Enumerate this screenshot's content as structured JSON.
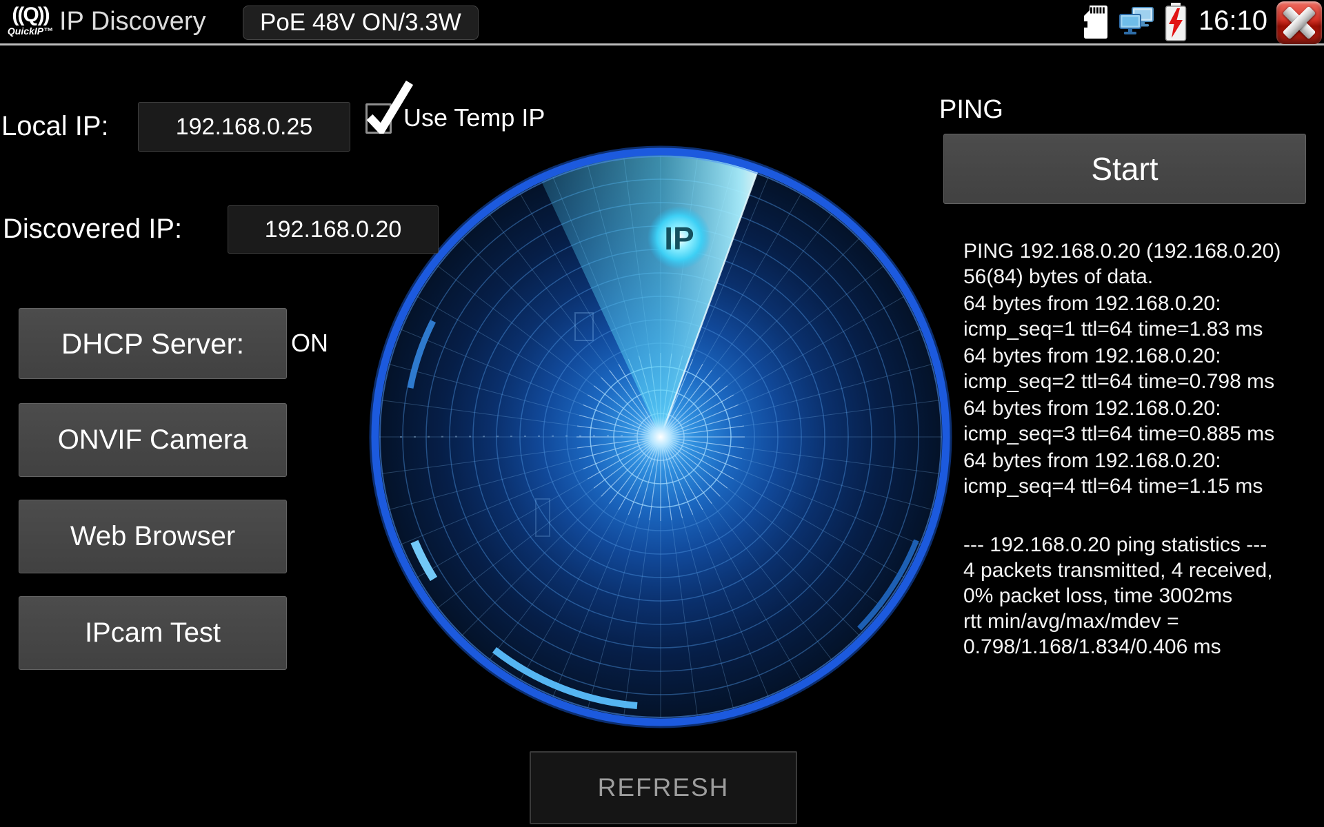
{
  "topbar": {
    "logo": {
      "glyph": "((Q))",
      "brand": "QuickIP™"
    },
    "title": "IP Discovery",
    "poe_badge": "PoE 48V ON/3.3W",
    "time": "16:10"
  },
  "icons": {
    "logo": "quickip-logo-icon",
    "sd_card": "sd-card-icon",
    "network": "network-status-icon",
    "battery": "battery-charging-icon",
    "close": "close-icon",
    "checkbox": "checkbox-checked-icon"
  },
  "left_panel": {
    "local_ip_label": "Local IP:",
    "local_ip_value": "192.168.0.25",
    "use_temp_ip_label": "Use Temp IP",
    "use_temp_ip_checked": true,
    "discovered_ip_label": "Discovered IP:",
    "discovered_ip_value": "192.168.0.20",
    "dhcp_button_label": "DHCP Server:",
    "dhcp_status": "ON",
    "onvif_button_label": "ONVIF Camera",
    "web_browser_button_label": "Web Browser",
    "ipcam_test_button_label": "IPcam Test"
  },
  "radar": {
    "blip_label": "IP"
  },
  "refresh_button_label": "REFRESH",
  "ping_panel": {
    "title": "PING",
    "start_button_label": "Start",
    "groups": [
      [
        "PING 192.168.0.20 (192.168.0.20)",
        "56(84) bytes of data."
      ],
      [
        "64 bytes from 192.168.0.20:",
        "icmp_seq=1 ttl=64 time=1.83 ms"
      ],
      [
        "64 bytes from 192.168.0.20:",
        "icmp_seq=2 ttl=64 time=0.798 ms"
      ],
      [
        "64 bytes from 192.168.0.20:",
        "icmp_seq=3 ttl=64 time=0.885 ms"
      ],
      [
        "64 bytes from 192.168.0.20:",
        "icmp_seq=4 ttl=64 time=1.15 ms"
      ]
    ],
    "stats": [
      "--- 192.168.0.20 ping statistics ---",
      "4 packets transmitted, 4 received,",
      "0% packet loss, time 3002ms",
      "rtt min/avg/max/mdev =",
      "0.798/1.168/1.834/0.406 ms"
    ]
  },
  "colors": {
    "accent_ring": "#1c5ade",
    "sweep_cyan": "#5fd7f8",
    "battery_bolt": "#e11414",
    "close_red": "#c01c10",
    "monitor_blue": "#9ed4f2",
    "topbar_divider": "#bdbdbd"
  }
}
